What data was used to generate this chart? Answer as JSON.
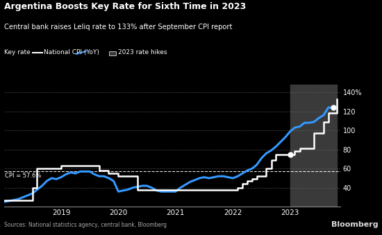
{
  "title": "Argentina Boosts Key Rate for Sixth Time in 2023",
  "subtitle": "Central bank raises Leliq rate to 133% after September CPI report",
  "legend_labels": [
    "Key rate",
    "National CPI (YoY)",
    "2023 rate hikes"
  ],
  "source": "Sources: National statistics agency, central bank, Bloomberg",
  "background_color": "#000000",
  "text_color": "#ffffff",
  "ylim": [
    20,
    148
  ],
  "yticks": [
    40,
    60,
    80,
    100,
    120,
    140
  ],
  "xlim_start": 2018.0,
  "xlim_end": 2023.87,
  "shade_start": 2023.0,
  "shade_end": 2023.82,
  "cpi_reference_level": 57.6,
  "cpi_label": "CPI = 57.6%",
  "key_rate_color": "#ffffff",
  "cpi_color": "#3399ff",
  "shade_color": "#3a3a3a",
  "key_rate_data": {
    "dates": [
      2018.0,
      2018.42,
      2018.5,
      2018.58,
      2018.75,
      2019.0,
      2019.25,
      2019.5,
      2019.67,
      2019.83,
      2020.0,
      2020.08,
      2020.33,
      2020.75,
      2021.0,
      2021.25,
      2021.5,
      2021.75,
      2022.0,
      2022.08,
      2022.17,
      2022.25,
      2022.33,
      2022.42,
      2022.5,
      2022.58,
      2022.67,
      2022.75,
      2022.83,
      2022.92,
      2023.0,
      2023.08,
      2023.17,
      2023.33,
      2023.42,
      2023.5,
      2023.58,
      2023.67,
      2023.75,
      2023.82
    ],
    "values": [
      27,
      27,
      40,
      60,
      60,
      63,
      63,
      63,
      58,
      55,
      52,
      52,
      38,
      38,
      38,
      38,
      38,
      38,
      38,
      40,
      44,
      47,
      49,
      52,
      52,
      60,
      69,
      75,
      75,
      75,
      75,
      78,
      81,
      81,
      97,
      97,
      109,
      118,
      118,
      133
    ]
  },
  "cpi_data": {
    "dates": [
      2018.0,
      2018.083,
      2018.167,
      2018.25,
      2018.333,
      2018.417,
      2018.5,
      2018.583,
      2018.667,
      2018.75,
      2018.833,
      2018.917,
      2019.0,
      2019.083,
      2019.167,
      2019.25,
      2019.333,
      2019.417,
      2019.5,
      2019.583,
      2019.667,
      2019.75,
      2019.833,
      2019.917,
      2020.0,
      2020.083,
      2020.167,
      2020.25,
      2020.333,
      2020.417,
      2020.5,
      2020.583,
      2020.667,
      2020.75,
      2020.833,
      2020.917,
      2021.0,
      2021.083,
      2021.167,
      2021.25,
      2021.333,
      2021.417,
      2021.5,
      2021.583,
      2021.667,
      2021.75,
      2021.833,
      2021.917,
      2022.0,
      2022.083,
      2022.167,
      2022.25,
      2022.333,
      2022.417,
      2022.5,
      2022.583,
      2022.667,
      2022.75,
      2022.833,
      2022.917,
      2023.0,
      2023.083,
      2023.167,
      2023.25,
      2023.333,
      2023.417,
      2023.5,
      2023.583,
      2023.667,
      2023.75
    ],
    "values": [
      25,
      26,
      27,
      28,
      30,
      32,
      34,
      38,
      42,
      47,
      50,
      49,
      51,
      54,
      56,
      55,
      57,
      57,
      57,
      54,
      52,
      52,
      50,
      47,
      36,
      37,
      38,
      40,
      41,
      42,
      42,
      40,
      37,
      36,
      36,
      36,
      36,
      40,
      43,
      46,
      48,
      50,
      51,
      50,
      51,
      52,
      52,
      51,
      50,
      52,
      55,
      58,
      60,
      64,
      71,
      76,
      79,
      83,
      88,
      93,
      99,
      103,
      104,
      108,
      108,
      109,
      113,
      116,
      124,
      124
    ]
  },
  "dot1_date": 2023.0,
  "dot1_value": 75,
  "dot2_date": 2023.75,
  "dot2_value": 124,
  "xtick_positions": [
    2019,
    2020,
    2021,
    2022,
    2023
  ]
}
